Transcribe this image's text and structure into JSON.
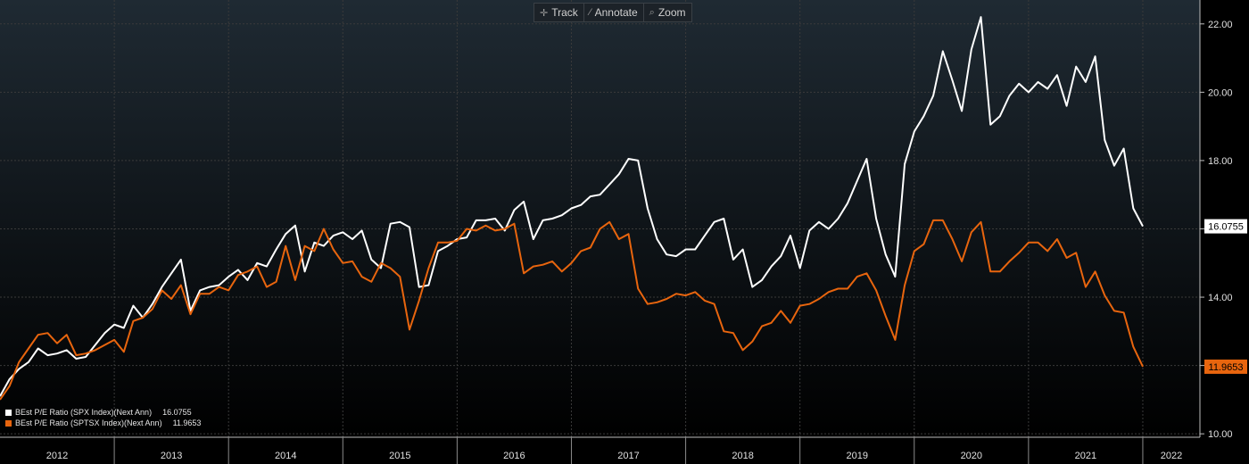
{
  "toolbar": {
    "track_label": "Track",
    "annotate_label": "Annotate",
    "zoom_label": "Zoom"
  },
  "colors": {
    "spx": "#ffffff",
    "sptsx": "#e8650e",
    "background_top": "#1f2a33",
    "background_bottom": "#000000",
    "grid": "#3a3a3a"
  },
  "legend": {
    "items": [
      {
        "label": "BEst P/E Ratio (SPX Index)(Next Ann)",
        "value": "16.0755"
      },
      {
        "label": "BEst P/E Ratio (SPTSX Index)(Next Ann)",
        "value": "11.9653"
      }
    ]
  },
  "chart_data": {
    "type": "line",
    "ylim": [
      9.9,
      22.7
    ],
    "yticks": [
      10,
      12,
      14,
      16,
      18,
      20,
      22
    ],
    "ytick_labels": [
      "10.00",
      "12.00",
      "14.00",
      "16.00",
      "18.00",
      "20.00",
      "22.00"
    ],
    "xlim": [
      2012.0,
      2022.5
    ],
    "x_year_labels": [
      "2012",
      "2013",
      "2014",
      "2015",
      "2016",
      "2017",
      "2018",
      "2019",
      "2020",
      "2021",
      "2022"
    ],
    "grid": true,
    "legend_position": "bottom-left",
    "x_start": "2012-01",
    "x_step": "1 month",
    "series": [
      {
        "name": "BEst P/E Ratio (SPX Index)(Next Ann)",
        "last_value_label": "16.0755",
        "values": [
          11.1,
          11.6,
          11.9,
          12.1,
          12.5,
          12.3,
          12.35,
          12.45,
          12.2,
          12.25,
          12.6,
          12.95,
          13.2,
          13.1,
          13.75,
          13.4,
          13.8,
          14.3,
          14.7,
          15.1,
          13.6,
          14.2,
          14.3,
          14.35,
          14.6,
          14.8,
          14.5,
          15.0,
          14.9,
          15.4,
          15.85,
          16.1,
          14.75,
          15.6,
          15.5,
          15.8,
          15.9,
          15.7,
          15.95,
          15.1,
          14.85,
          16.15,
          16.2,
          16.05,
          14.3,
          14.35,
          15.35,
          15.5,
          15.7,
          15.75,
          16.25,
          16.25,
          16.3,
          15.95,
          16.55,
          16.8,
          15.7,
          16.25,
          16.3,
          16.4,
          16.6,
          16.7,
          16.95,
          17.0,
          17.3,
          17.6,
          18.05,
          18.0,
          16.6,
          15.7,
          15.25,
          15.2,
          15.4,
          15.4,
          15.8,
          16.2,
          16.3,
          15.1,
          15.4,
          14.3,
          14.5,
          14.9,
          15.2,
          15.8,
          14.85,
          15.95,
          16.2,
          16.0,
          16.3,
          16.75,
          17.4,
          18.05,
          16.3,
          15.25,
          14.6,
          17.9,
          18.85,
          19.3,
          19.9,
          21.2,
          20.35,
          19.45,
          21.25,
          22.2,
          19.05,
          19.3,
          19.9,
          20.25,
          20.0,
          20.3,
          20.1,
          20.5,
          19.6,
          20.75,
          20.3,
          21.05,
          18.6,
          17.85,
          18.35,
          16.6,
          16.0755
        ]
      },
      {
        "name": "BEst P/E Ratio (SPTSX Index)(Next Ann)",
        "last_value_label": "11.9653",
        "values": [
          11.0,
          11.4,
          12.1,
          12.5,
          12.9,
          12.95,
          12.65,
          12.9,
          12.3,
          12.35,
          12.45,
          12.6,
          12.75,
          12.4,
          13.3,
          13.4,
          13.65,
          14.2,
          13.95,
          14.35,
          13.5,
          14.1,
          14.1,
          14.3,
          14.2,
          14.65,
          14.75,
          14.9,
          14.3,
          14.45,
          15.5,
          14.5,
          15.5,
          15.35,
          16.0,
          15.4,
          15.0,
          15.05,
          14.6,
          14.45,
          15.0,
          14.85,
          14.6,
          13.05,
          13.9,
          14.85,
          15.6,
          15.6,
          15.65,
          16.0,
          15.95,
          16.1,
          15.95,
          16.0,
          16.15,
          14.7,
          14.9,
          14.95,
          15.05,
          14.75,
          15.0,
          15.35,
          15.45,
          16.0,
          16.2,
          15.7,
          15.85,
          14.25,
          13.8,
          13.85,
          13.95,
          14.1,
          14.05,
          14.15,
          13.9,
          13.8,
          13.0,
          12.95,
          12.45,
          12.7,
          13.15,
          13.25,
          13.6,
          13.25,
          13.75,
          13.8,
          13.95,
          14.15,
          14.25,
          14.25,
          14.6,
          14.7,
          14.2,
          13.45,
          12.75,
          14.35,
          15.35,
          15.55,
          16.25,
          16.25,
          15.7,
          15.05,
          15.9,
          16.2,
          14.75,
          14.75,
          15.05,
          15.3,
          15.6,
          15.6,
          15.35,
          15.7,
          15.15,
          15.3,
          14.3,
          14.75,
          14.05,
          13.6,
          13.55,
          12.55,
          11.9653
        ]
      }
    ]
  }
}
